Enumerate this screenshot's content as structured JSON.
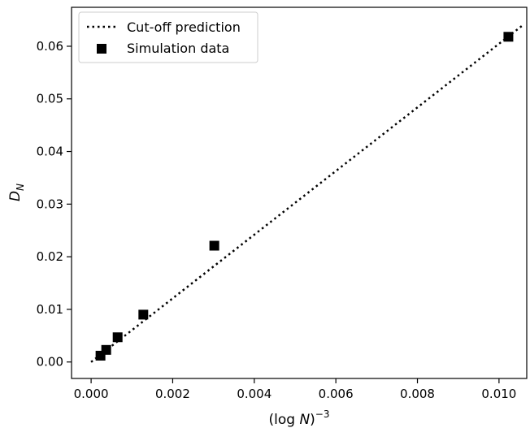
{
  "chart_data": {
    "type": "scatter",
    "title": "",
    "xlabel_base": "(log ",
    "xlabel_var": "N",
    "xlabel_close": ")",
    "xlabel_sup": "−3",
    "ylabel_main": "D",
    "ylabel_sub": "N",
    "xlim": [
      -0.00048,
      0.01068
    ],
    "ylim": [
      -0.00313,
      0.0674
    ],
    "xticks": [
      0.0,
      0.002,
      0.004,
      0.006,
      0.008,
      0.01
    ],
    "xtick_labels": [
      "0.000",
      "0.002",
      "0.004",
      "0.006",
      "0.008",
      "0.010"
    ],
    "yticks": [
      0.0,
      0.01,
      0.02,
      0.03,
      0.04,
      0.05,
      0.06
    ],
    "ytick_labels": [
      "0.00",
      "0.01",
      "0.02",
      "0.03",
      "0.04",
      "0.05",
      "0.06"
    ],
    "grid": false,
    "legend_position": "upper-left",
    "series": [
      {
        "name": "Cut-off prediction",
        "kind": "line",
        "style": "dotted",
        "color": "#000000",
        "x": [
          0.0,
          0.0106
        ],
        "y": [
          0.0,
          0.0641
        ]
      },
      {
        "name": "Simulation data",
        "kind": "scatter",
        "marker": "square",
        "color": "#000000",
        "x": [
          0.00023,
          0.00037,
          0.00065,
          0.00128,
          0.00302,
          0.01023
        ],
        "y": [
          0.0012,
          0.0023,
          0.0047,
          0.009,
          0.0221,
          0.0618
        ]
      }
    ]
  }
}
